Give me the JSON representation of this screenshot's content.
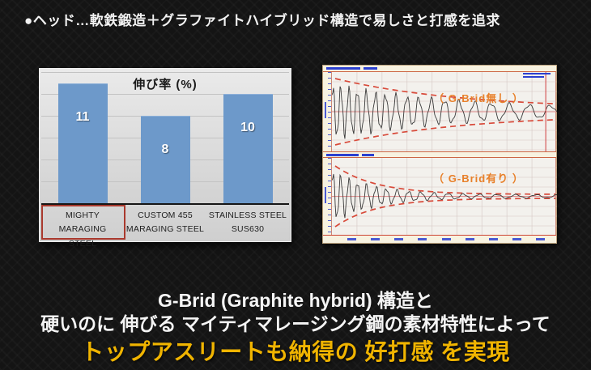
{
  "header": {
    "bullet_text": "●ヘッド…軟鉄鍛造＋グラファイトハイブリッド構造で易しさと打感を追求"
  },
  "caption": {
    "line1": "G-Brid (Graphite hybrid) 構造と",
    "line2": "硬いのに 伸びる マイティマレージング鋼の素材特性によって",
    "highlight": "トップアスリートも納得の 好打感 を実現"
  },
  "colors": {
    "background": "#141414",
    "headline_text": "#f2f2f2",
    "highlight_text": "#f0b400",
    "bar": "#6d99ca",
    "bar_value_label": "#ffffff",
    "highlight_box": "#a9392d",
    "envelope": "#d84a3a",
    "annotation": "#e8802a",
    "waveform": "#3a3a3a"
  },
  "chart_data": [
    {
      "type": "bar",
      "title": "伸び率 (%)",
      "categories": [
        "MIGHTY MARAGING STEEL",
        "CUSTOM 455 MARAGING STEEL",
        "STAINLESS STEEL SUS630"
      ],
      "category_lines": [
        [
          "MIGHTY MARAGING",
          "STEEL"
        ],
        [
          "CUSTOM 455",
          "MARAGING STEEL"
        ],
        [
          "STAINLESS STEEL",
          "SUS630"
        ]
      ],
      "values": [
        11,
        8,
        10
      ],
      "ylim": [
        0,
        12
      ],
      "gridline_step": 2,
      "legend": "none",
      "highlighted_category_index": 0
    },
    {
      "type": "line",
      "name": "vibration-decay-without-gbrid",
      "annotation": "（ G-Brid無し ）",
      "description": "damped vibration waveform with red dashed decay envelope, slow decay",
      "render": {
        "decay_rate": 1.8,
        "floor": 0.08,
        "start_frequency": 30,
        "end_frequency": 4,
        "freq_decay": 1.5,
        "cursor_x_ratio": 0.95
      }
    },
    {
      "type": "line",
      "name": "vibration-decay-with-gbrid",
      "annotation": "（ G-Brid有り ）",
      "description": "damped vibration waveform with red dashed decay envelope, fast decay",
      "render": {
        "decay_rate": 5.5,
        "floor": 0.06,
        "start_frequency": 30,
        "end_frequency": 6,
        "freq_decay": 1.8
      }
    }
  ]
}
